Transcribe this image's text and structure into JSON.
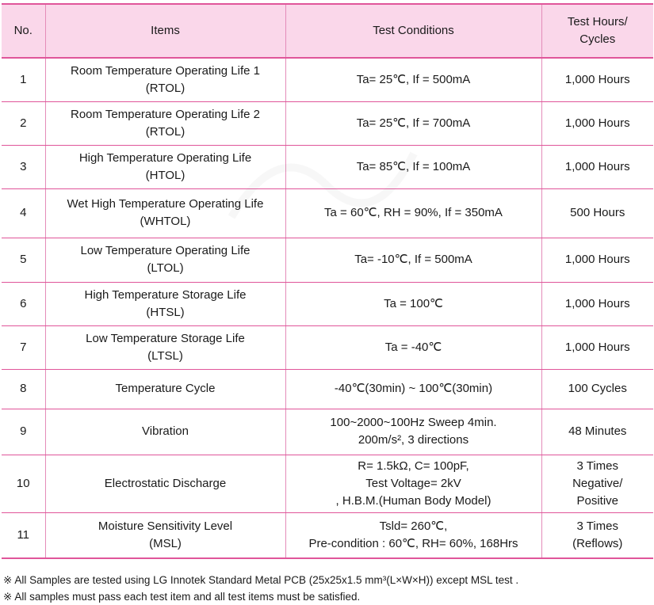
{
  "header": {
    "no": "No.",
    "items": "Items",
    "conditions": "Test Conditions",
    "hours_line1": "Test Hours/",
    "hours_line2": "Cycles"
  },
  "rows": [
    {
      "no": "1",
      "item": [
        "Room Temperature Operating Life 1",
        "(RTOL)"
      ],
      "cond": [
        "Ta= 25℃, If = 500mA"
      ],
      "hours": [
        "1,000 Hours"
      ]
    },
    {
      "no": "2",
      "item": [
        "Room Temperature Operating Life 2",
        "(RTOL)"
      ],
      "cond": [
        "Ta= 25℃, If = 700mA"
      ],
      "hours": [
        "1,000 Hours"
      ]
    },
    {
      "no": "3",
      "item": [
        "High Temperature Operating Life",
        "(HTOL)"
      ],
      "cond": [
        "Ta= 85℃, If = 100mA"
      ],
      "hours": [
        "1,000 Hours"
      ]
    },
    {
      "no": "4",
      "item": [
        "Wet High Temperature Operating Life",
        "(WHTOL)"
      ],
      "cond": [
        "Ta = 60℃, RH = 90%, If = 350mA"
      ],
      "hours": [
        "500 Hours"
      ]
    },
    {
      "no": "5",
      "item": [
        "Low Temperature Operating Life",
        "(LTOL)"
      ],
      "cond": [
        "Ta= -10℃, If = 500mA"
      ],
      "hours": [
        "1,000 Hours"
      ]
    },
    {
      "no": "6",
      "item": [
        "High Temperature Storage Life",
        "(HTSL)"
      ],
      "cond": [
        "Ta = 100℃"
      ],
      "hours": [
        "1,000 Hours"
      ]
    },
    {
      "no": "7",
      "item": [
        "Low Temperature Storage Life",
        "(LTSL)"
      ],
      "cond": [
        "Ta = -40℃"
      ],
      "hours": [
        "1,000 Hours"
      ]
    },
    {
      "no": "8",
      "item": [
        "Temperature Cycle"
      ],
      "cond": [
        "-40℃(30min) ~ 100℃(30min)"
      ],
      "hours": [
        "100 Cycles"
      ]
    },
    {
      "no": "9",
      "item": [
        "Vibration"
      ],
      "cond": [
        "100~2000~100Hz Sweep 4min.",
        "200m/s², 3 directions"
      ],
      "hours": [
        "48 Minutes"
      ]
    },
    {
      "no": "10",
      "item": [
        "Electrostatic Discharge"
      ],
      "cond": [
        "R= 1.5kΩ, C= 100pF,",
        "Test Voltage= 2kV",
        ", H.B.M.(Human Body Model)"
      ],
      "hours": [
        "3 Times",
        "Negative/",
        "Positive"
      ]
    },
    {
      "no": "11",
      "item": [
        "Moisture Sensitivity Level",
        "(MSL)"
      ],
      "cond": [
        "Tsld= 260℃,",
        "Pre-condition : 60℃, RH= 60%, 168Hrs"
      ],
      "hours": [
        "3 Times",
        "(Reflows)"
      ]
    }
  ],
  "notes": [
    "※ All Samples are tested using LG Innotek Standard Metal PCB (25x25x1.5 mm³(L×W×H)) except MSL test .",
    "※ All samples must pass each test item and all test items must be satisfied."
  ]
}
